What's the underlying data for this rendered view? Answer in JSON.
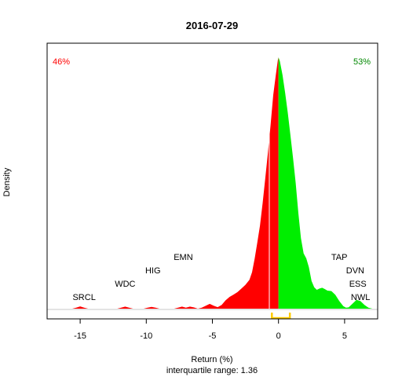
{
  "chart_data": {
    "type": "area",
    "title": "2016-07-29",
    "xlabel": "Return (%)",
    "subtitle": "interquartile range: 1.36",
    "ylabel": "Density",
    "xlim": [
      -17.5,
      7.5
    ],
    "ylim": [
      0,
      1
    ],
    "xticks": [
      -15,
      -10,
      -5,
      0,
      5
    ],
    "xtick_labels": [
      "-15",
      "-10",
      "-5",
      "0",
      "5"
    ],
    "pct_negative": "46%",
    "pct_positive": "53%",
    "negative_color": "#ff0000",
    "positive_color": "#00ee00",
    "iqr_color": "#ffcc00",
    "iqr": [
      -0.5,
      0.86
    ],
    "labels": [
      {
        "text": "SRCL",
        "x": -14.7,
        "level": 1
      },
      {
        "text": "WDC",
        "x": -11.6,
        "level": 2
      },
      {
        "text": "HIG",
        "x": -9.5,
        "level": 3
      },
      {
        "text": "EMN",
        "x": -7.2,
        "level": 4
      },
      {
        "text": "TAP",
        "x": 4.6,
        "level": 4
      },
      {
        "text": "DVN",
        "x": 5.8,
        "level": 3
      },
      {
        "text": "ESS",
        "x": 6.0,
        "level": 2
      },
      {
        "text": "NWL",
        "x": 6.2,
        "level": 1
      }
    ],
    "density": [
      [
        -16.0,
        0.0
      ],
      [
        -15.6,
        0.0
      ],
      [
        -15.3,
        0.004
      ],
      [
        -15.0,
        0.009
      ],
      [
        -14.7,
        0.004
      ],
      [
        -14.4,
        0.0
      ],
      [
        -12.2,
        0.0
      ],
      [
        -11.9,
        0.004
      ],
      [
        -11.6,
        0.008
      ],
      [
        -11.3,
        0.004
      ],
      [
        -11.0,
        0.0
      ],
      [
        -10.2,
        0.0
      ],
      [
        -9.9,
        0.004
      ],
      [
        -9.6,
        0.007
      ],
      [
        -9.3,
        0.004
      ],
      [
        -9.0,
        0.0
      ],
      [
        -7.9,
        0.0
      ],
      [
        -7.6,
        0.004
      ],
      [
        -7.3,
        0.008
      ],
      [
        -7.0,
        0.004
      ],
      [
        -6.7,
        0.008
      ],
      [
        -6.4,
        0.005
      ],
      [
        -6.1,
        0.0
      ],
      [
        -5.8,
        0.004
      ],
      [
        -5.5,
        0.012
      ],
      [
        -5.2,
        0.019
      ],
      [
        -4.9,
        0.012
      ],
      [
        -4.6,
        0.006
      ],
      [
        -4.3,
        0.015
      ],
      [
        -4.0,
        0.033
      ],
      [
        -3.7,
        0.047
      ],
      [
        -3.4,
        0.056
      ],
      [
        -3.1,
        0.066
      ],
      [
        -2.8,
        0.08
      ],
      [
        -2.5,
        0.095
      ],
      [
        -2.2,
        0.115
      ],
      [
        -2.0,
        0.145
      ],
      [
        -1.8,
        0.2
      ],
      [
        -1.6,
        0.265
      ],
      [
        -1.4,
        0.33
      ],
      [
        -1.2,
        0.42
      ],
      [
        -1.0,
        0.52
      ],
      [
        -0.8,
        0.62
      ],
      [
        -0.6,
        0.73
      ],
      [
        -0.4,
        0.85
      ],
      [
        -0.2,
        0.93
      ],
      [
        -0.05,
        0.99
      ],
      [
        0.0,
        1.0
      ],
      [
        0.1,
        0.985
      ],
      [
        0.3,
        0.93
      ],
      [
        0.5,
        0.86
      ],
      [
        0.7,
        0.78
      ],
      [
        0.9,
        0.69
      ],
      [
        1.1,
        0.6
      ],
      [
        1.3,
        0.5
      ],
      [
        1.5,
        0.38
      ],
      [
        1.7,
        0.28
      ],
      [
        1.9,
        0.22
      ],
      [
        2.1,
        0.2
      ],
      [
        2.3,
        0.165
      ],
      [
        2.5,
        0.11
      ],
      [
        2.7,
        0.085
      ],
      [
        2.9,
        0.075
      ],
      [
        3.1,
        0.08
      ],
      [
        3.3,
        0.083
      ],
      [
        3.5,
        0.078
      ],
      [
        3.7,
        0.072
      ],
      [
        4.0,
        0.07
      ],
      [
        4.3,
        0.055
      ],
      [
        4.6,
        0.03
      ],
      [
        4.9,
        0.01
      ],
      [
        5.1,
        0.004
      ],
      [
        5.3,
        0.005
      ],
      [
        5.6,
        0.02
      ],
      [
        5.9,
        0.035
      ],
      [
        6.2,
        0.03
      ],
      [
        6.5,
        0.015
      ],
      [
        6.8,
        0.004
      ],
      [
        7.1,
        0.0
      ]
    ]
  }
}
